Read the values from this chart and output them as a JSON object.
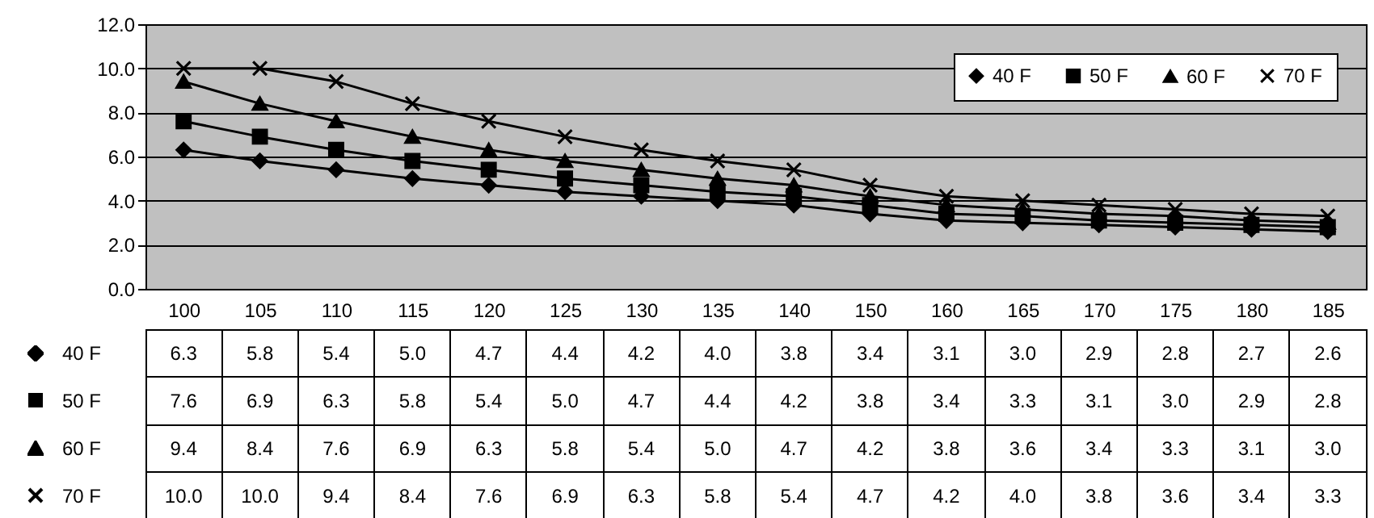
{
  "chart_data": {
    "type": "line",
    "categories": [
      "100",
      "105",
      "110",
      "115",
      "120",
      "125",
      "130",
      "135",
      "140",
      "150",
      "160",
      "165",
      "170",
      "175",
      "180",
      "185"
    ],
    "series": [
      {
        "name": "40 F",
        "color": "#000000",
        "marker": "diamond",
        "values": [
          6.3,
          5.8,
          5.4,
          5.0,
          4.7,
          4.4,
          4.2,
          4.0,
          3.8,
          3.4,
          3.1,
          3.0,
          2.9,
          2.8,
          2.7,
          2.6
        ],
        "value_labels": [
          "6.3",
          "5.8",
          "5.4",
          "5.0",
          "4.7",
          "4.4",
          "4.2",
          "4.0",
          "3.8",
          "3.4",
          "3.1",
          "3.0",
          "2.9",
          "2.8",
          "2.7",
          "2.6"
        ]
      },
      {
        "name": "50 F",
        "color": "#000000",
        "marker": "square",
        "values": [
          7.6,
          6.9,
          6.3,
          5.8,
          5.4,
          5.0,
          4.7,
          4.4,
          4.2,
          3.8,
          3.4,
          3.3,
          3.1,
          3.0,
          2.9,
          2.8
        ],
        "value_labels": [
          "7.6",
          "6.9",
          "6.3",
          "5.8",
          "5.4",
          "5.0",
          "4.7",
          "4.4",
          "4.2",
          "3.8",
          "3.4",
          "3.3",
          "3.1",
          "3.0",
          "2.9",
          "2.8"
        ]
      },
      {
        "name": "60 F",
        "color": "#000000",
        "marker": "triangle",
        "values": [
          9.4,
          8.4,
          7.6,
          6.9,
          6.3,
          5.8,
          5.4,
          5.0,
          4.7,
          4.2,
          3.8,
          3.6,
          3.4,
          3.3,
          3.1,
          3.0
        ],
        "value_labels": [
          "9.4",
          "8.4",
          "7.6",
          "6.9",
          "6.3",
          "5.8",
          "5.4",
          "5.0",
          "4.7",
          "4.2",
          "3.8",
          "3.6",
          "3.4",
          "3.3",
          "3.1",
          "3.0"
        ]
      },
      {
        "name": "70 F",
        "color": "#000000",
        "marker": "cross",
        "values": [
          10.0,
          10.0,
          9.4,
          8.4,
          7.6,
          6.9,
          6.3,
          5.8,
          5.4,
          4.7,
          4.2,
          4.0,
          3.8,
          3.6,
          3.4,
          3.3
        ],
        "value_labels": [
          "10.0",
          "10.0",
          "9.4",
          "8.4",
          "7.6",
          "6.9",
          "6.3",
          "5.8",
          "5.4",
          "4.7",
          "4.2",
          "4.0",
          "3.8",
          "3.6",
          "3.4",
          "3.3"
        ]
      }
    ],
    "ylim": [
      0,
      12
    ],
    "yticks": [
      {
        "value": 0,
        "label": "0.0"
      },
      {
        "value": 2,
        "label": "2.0"
      },
      {
        "value": 4,
        "label": "4.0"
      },
      {
        "value": 6,
        "label": "6.0"
      },
      {
        "value": 8,
        "label": "8.0"
      },
      {
        "value": 10,
        "label": "10.0"
      },
      {
        "value": 12,
        "label": "12.0"
      }
    ],
    "grid": "y",
    "legend": "top right",
    "line_style": "solid"
  }
}
